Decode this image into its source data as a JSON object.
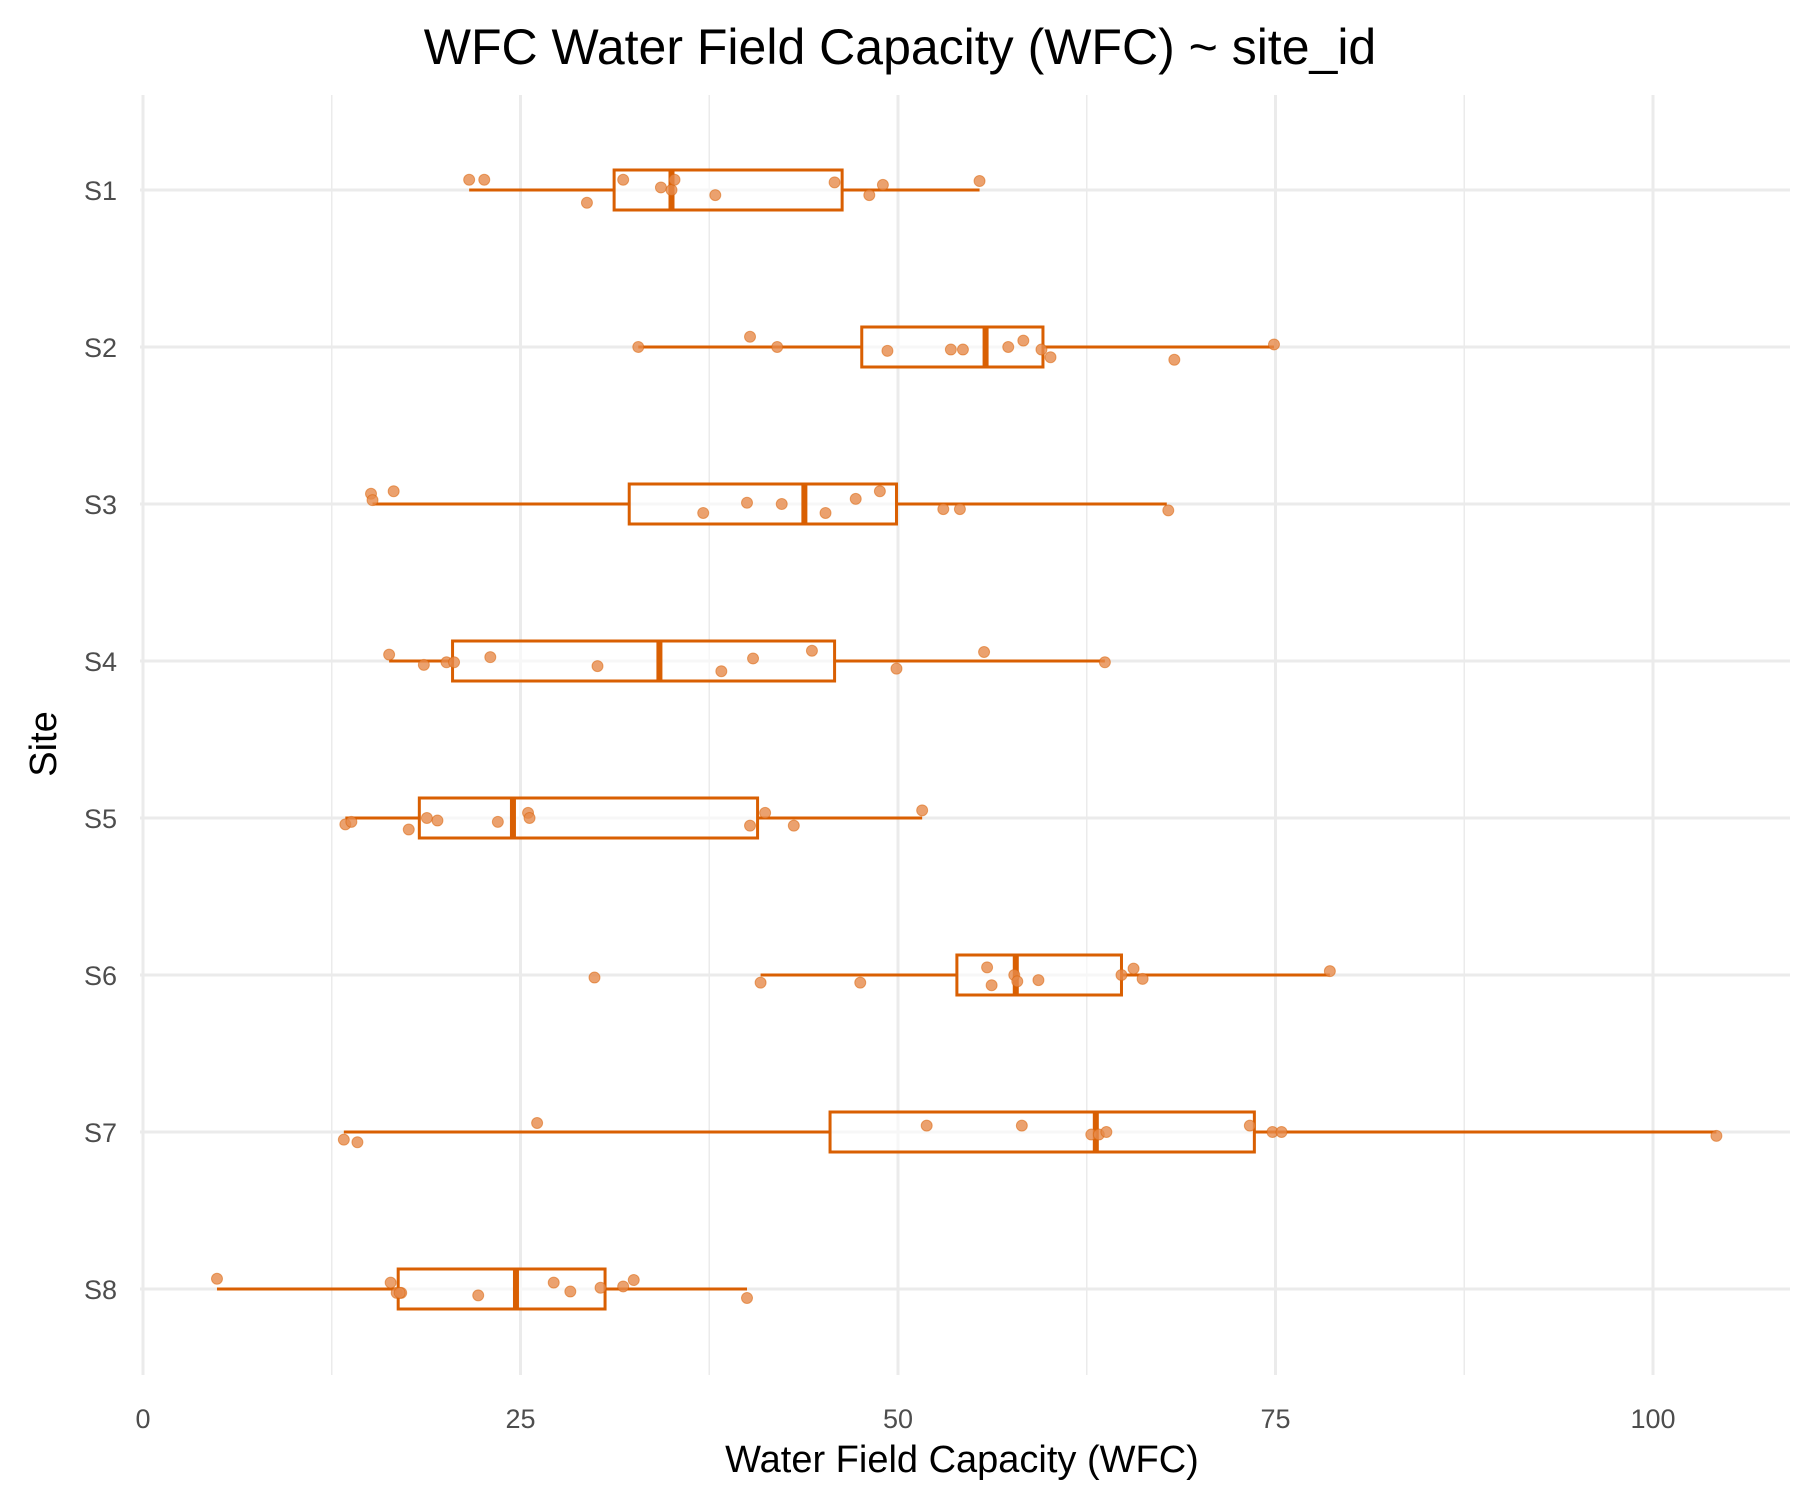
{
  "chart_data": {
    "type": "boxplot",
    "title": "WFC Water Field Capacity (WFC) ~ site_id",
    "xlabel": "Water Field Capacity (WFC)",
    "ylabel": "Site",
    "orientation": "horizontal",
    "xlim": [
      -4,
      109
    ],
    "xticks": [
      0,
      25,
      50,
      75,
      100
    ],
    "grid": true,
    "legend": "none",
    "colors": {
      "box": "#d95f02",
      "points": "#e6894a",
      "grid": "#ebebeb"
    },
    "categories": [
      "S1",
      "S2",
      "S3",
      "S4",
      "S5",
      "S6",
      "S7",
      "S8"
    ],
    "boxes": [
      {
        "site": "S1",
        "whisker_low": 21.6,
        "q1": 31.2,
        "median": 35.0,
        "q3": 46.3,
        "whisker_high": 55.4
      },
      {
        "site": "S2",
        "whisker_low": 32.8,
        "q1": 47.6,
        "median": 55.8,
        "q3": 59.6,
        "whisker_high": 74.9
      },
      {
        "site": "S3",
        "whisker_low": 15.2,
        "q1": 32.2,
        "median": 43.8,
        "q3": 49.9,
        "whisker_high": 67.8
      },
      {
        "site": "S4",
        "whisker_low": 16.3,
        "q1": 20.5,
        "median": 34.2,
        "q3": 45.8,
        "whisker_high": 63.7
      },
      {
        "site": "S5",
        "whisker_low": 13.4,
        "q1": 18.3,
        "median": 24.5,
        "q3": 40.7,
        "whisker_high": 51.6
      },
      {
        "site": "S6",
        "whisker_low": 40.9,
        "q1": 53.9,
        "median": 57.8,
        "q3": 64.8,
        "whisker_high": 78.6
      },
      {
        "site": "S7",
        "whisker_low": 13.3,
        "q1": 45.5,
        "median": 63.1,
        "q3": 73.6,
        "whisker_high": 104.2
      },
      {
        "site": "S8",
        "whisker_low": 4.9,
        "q1": 16.9,
        "median": 24.7,
        "q3": 30.6,
        "whisker_high": 40.0
      }
    ],
    "points": [
      {
        "site": "S1",
        "values": [
          21.6,
          22.6,
          29.4,
          31.8,
          34.3,
          35.0,
          35.2,
          37.9,
          45.8,
          48.1,
          49.0,
          55.4
        ],
        "jitter": [
          0.08,
          0.08,
          -0.1,
          0.08,
          0.02,
          0.0,
          0.08,
          -0.04,
          0.06,
          -0.04,
          0.04,
          0.07
        ]
      },
      {
        "site": "S2",
        "values": [
          32.8,
          40.2,
          42.0,
          49.3,
          53.5,
          54.3,
          57.3,
          58.3,
          59.5,
          60.1,
          68.3,
          74.9
        ],
        "jitter": [
          0.0,
          0.08,
          0.0,
          -0.03,
          -0.02,
          -0.02,
          0.0,
          0.05,
          -0.02,
          -0.08,
          -0.1,
          0.02
        ]
      },
      {
        "site": "S3",
        "values": [
          15.1,
          15.2,
          16.6,
          37.1,
          40.0,
          42.3,
          45.2,
          47.2,
          48.8,
          53.0,
          54.1,
          67.9
        ],
        "jitter": [
          0.08,
          0.03,
          0.1,
          -0.07,
          0.01,
          0.0,
          -0.07,
          0.04,
          0.1,
          -0.04,
          -0.04,
          -0.05
        ]
      },
      {
        "site": "S4",
        "values": [
          16.3,
          18.6,
          20.1,
          20.6,
          23.0,
          30.1,
          38.3,
          40.4,
          44.3,
          49.9,
          55.7,
          63.7
        ],
        "jitter": [
          0.05,
          -0.03,
          -0.01,
          -0.01,
          0.03,
          -0.04,
          -0.08,
          0.02,
          0.08,
          -0.06,
          0.07,
          -0.01
        ]
      },
      {
        "site": "S5",
        "values": [
          13.4,
          13.8,
          17.6,
          18.8,
          19.5,
          23.5,
          25.5,
          25.6,
          40.2,
          41.2,
          43.1,
          51.6
        ],
        "jitter": [
          -0.05,
          -0.03,
          -0.09,
          0.0,
          -0.02,
          -0.03,
          0.04,
          0.0,
          -0.06,
          0.04,
          -0.06,
          0.06
        ]
      },
      {
        "site": "S6",
        "values": [
          29.9,
          40.9,
          47.5,
          55.9,
          56.2,
          57.7,
          57.9,
          59.3,
          64.8,
          65.6,
          66.2,
          78.6
        ],
        "jitter": [
          -0.02,
          -0.06,
          -0.06,
          0.06,
          -0.08,
          0.0,
          -0.05,
          -0.04,
          0.0,
          0.05,
          -0.03,
          0.03
        ]
      },
      {
        "site": "S7",
        "values": [
          13.3,
          14.2,
          26.1,
          51.9,
          58.2,
          62.8,
          63.3,
          63.8,
          73.3,
          74.8,
          75.4,
          104.2
        ],
        "jitter": [
          -0.06,
          -0.08,
          0.07,
          0.05,
          0.05,
          -0.02,
          -0.02,
          0.0,
          0.05,
          0.0,
          0.0,
          -0.03
        ]
      },
      {
        "site": "S8",
        "values": [
          4.9,
          16.4,
          16.8,
          17.1,
          22.2,
          27.2,
          28.3,
          30.3,
          31.8,
          32.5,
          40.0,
          17.0
        ],
        "jitter": [
          0.08,
          0.05,
          -0.03,
          -0.03,
          -0.05,
          0.05,
          -0.02,
          0.01,
          0.02,
          0.07,
          -0.07,
          -0.03
        ]
      }
    ]
  }
}
